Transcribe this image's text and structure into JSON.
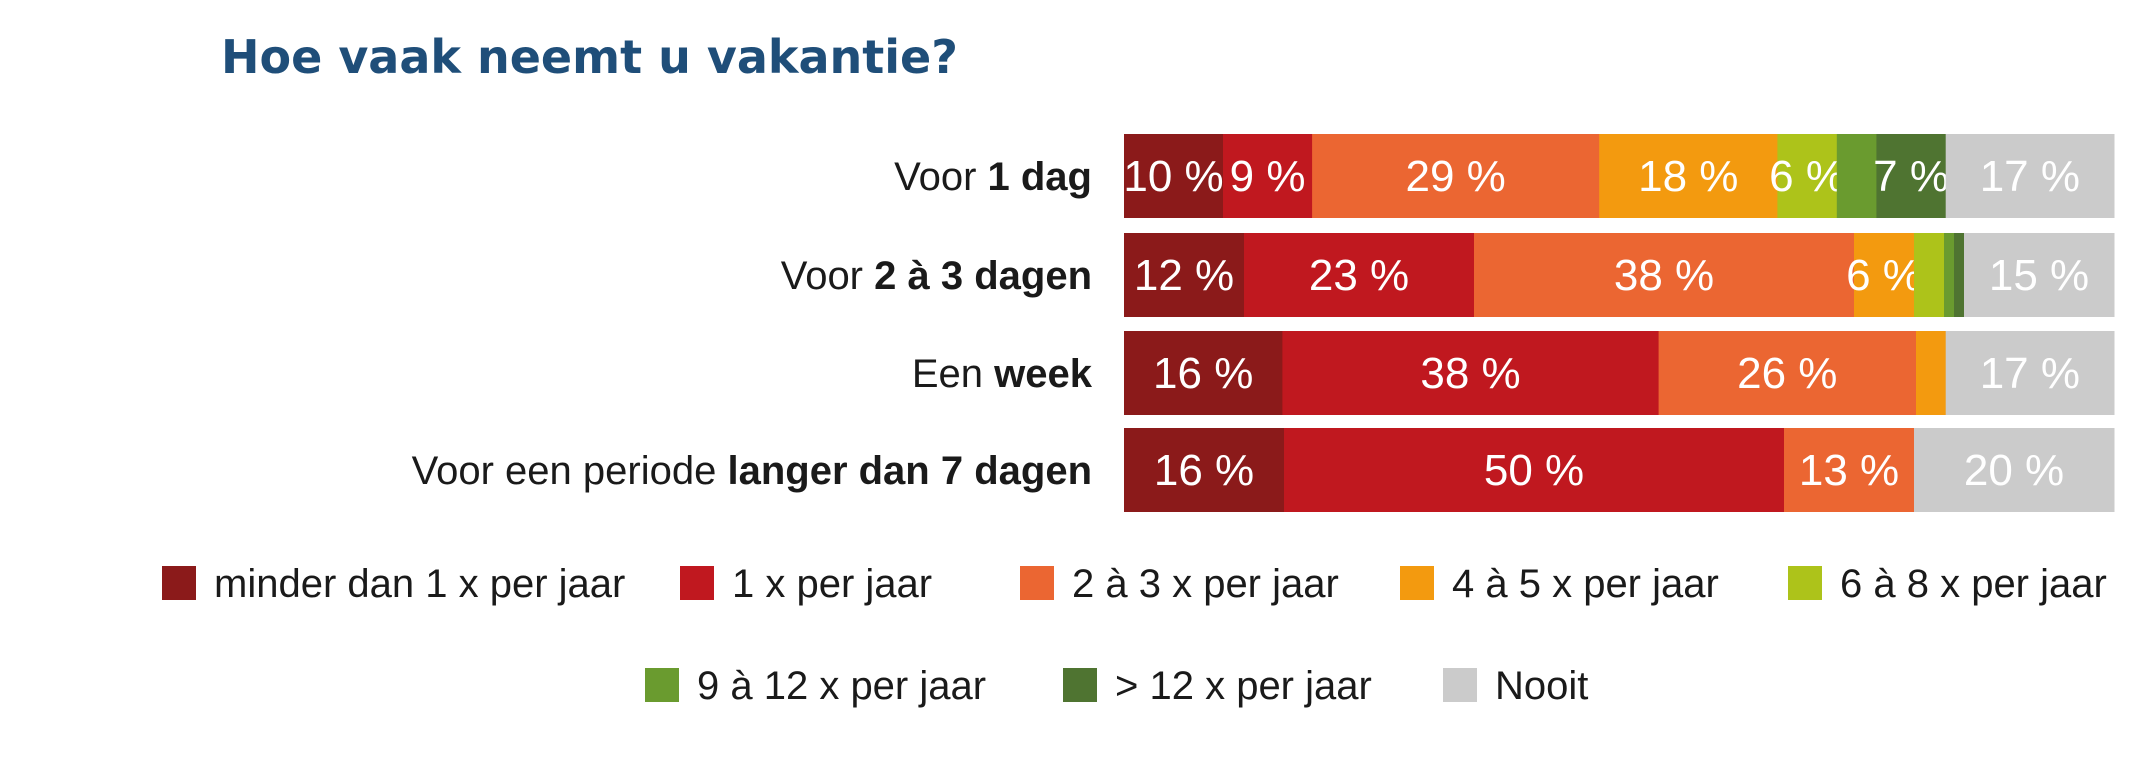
{
  "chart_data": {
    "type": "bar",
    "orientation": "horizontal",
    "stacked": true,
    "title": "Hoe vaak neemt u vakantie?",
    "unit_suffix": " %",
    "categories": [
      {
        "prefix": "Voor ",
        "bold": "1 dag"
      },
      {
        "prefix": "Voor ",
        "bold": "2 à 3 dagen"
      },
      {
        "prefix": "Een ",
        "bold": "week"
      },
      {
        "prefix": "Voor een periode ",
        "bold": "langer dan 7 dagen"
      }
    ],
    "series": [
      {
        "name": "minder dan 1 x per jaar",
        "color": "#8b1a1a",
        "values": [
          10,
          12,
          16,
          16
        ],
        "labels": [
          "10 %",
          "12 %",
          "16 %",
          "16 %"
        ]
      },
      {
        "name": "1 x per jaar",
        "color": "#c0181f",
        "values": [
          9,
          23,
          38,
          50
        ],
        "labels": [
          "9 %",
          "23 %",
          "38 %",
          "50 %"
        ]
      },
      {
        "name": "2 à 3 x per jaar",
        "color": "#eb6632",
        "values": [
          29,
          38,
          26,
          13
        ],
        "labels": [
          "29 %",
          "38 %",
          "26 %",
          "13 %"
        ]
      },
      {
        "name": "4 à 5 x per jaar",
        "color": "#f39a0f",
        "values": [
          18,
          6,
          3,
          0
        ],
        "labels": [
          "18 %",
          "6 %",
          "",
          ""
        ]
      },
      {
        "name": "6 à 8 x per jaar",
        "color": "#adc31a",
        "values": [
          6,
          3,
          0,
          0
        ],
        "labels": [
          "6 %",
          "",
          "",
          ""
        ]
      },
      {
        "name": "9 à 12 x per jaar",
        "color": "#6a9b2f",
        "values": [
          4,
          1,
          0,
          0
        ],
        "labels": [
          "",
          "",
          "",
          ""
        ]
      },
      {
        "name": "> 12 x per jaar",
        "color": "#4f7431",
        "values": [
          7,
          1,
          0,
          0
        ],
        "labels": [
          "7 %",
          "",
          "",
          ""
        ]
      },
      {
        "name": "Nooit",
        "color": "#cbcbcb",
        "values": [
          17,
          15,
          17,
          20
        ],
        "labels": [
          "17 %",
          "15 %",
          "17 %",
          "20 %"
        ]
      }
    ],
    "xlim": [
      0,
      100
    ],
    "legend_position": "bottom"
  }
}
